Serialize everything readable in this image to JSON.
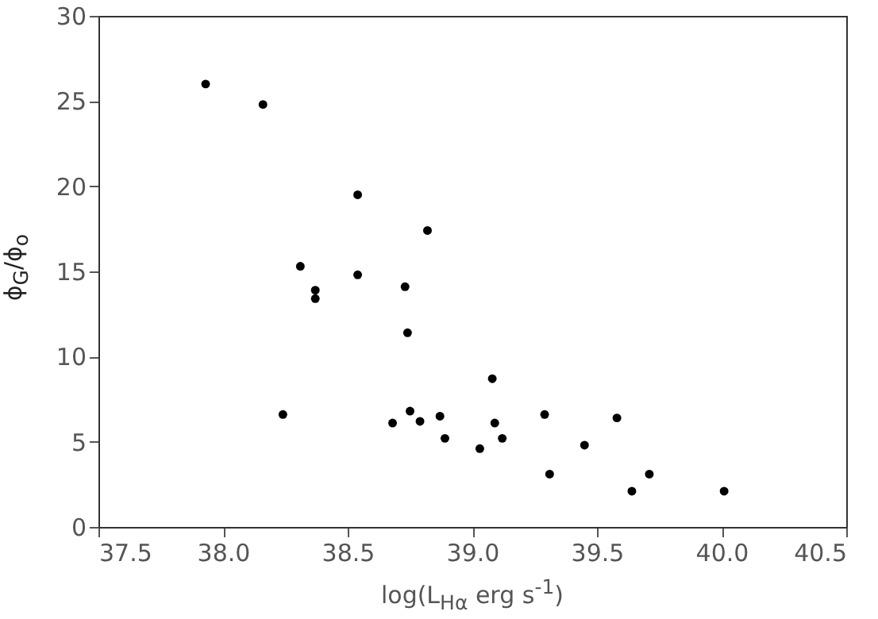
{
  "chart_data": {
    "type": "scatter",
    "xlabel": "log(L$_{Hα}$ erg s$^{-1}$)",
    "ylabel": "ϕ$_{G}$/ϕ$_{o}$",
    "x": [
      37.93,
      38.16,
      38.54,
      38.82,
      38.31,
      38.54,
      38.37,
      38.37,
      38.73,
      38.74,
      38.24,
      38.68,
      38.75,
      38.79,
      38.87,
      38.89,
      39.03,
      39.08,
      39.09,
      39.12,
      39.29,
      39.31,
      39.45,
      39.58,
      39.64,
      39.71,
      40.01
    ],
    "series": [
      {
        "color": "#000000",
        "values": [
          26.0,
          24.8,
          19.5,
          17.4,
          15.3,
          14.8,
          13.9,
          13.4,
          14.1,
          11.4,
          6.6,
          6.1,
          6.8,
          6.2,
          6.5,
          5.2,
          4.6,
          8.7,
          6.1,
          5.2,
          6.6,
          3.1,
          4.8,
          6.4,
          2.1,
          3.1,
          2.1
        ]
      }
    ],
    "xlim": [
      37.5,
      40.5
    ],
    "xticks": [
      {
        "value": 37.5,
        "label": "37.5"
      },
      {
        "value": 38,
        "label": "38.0"
      },
      {
        "value": 38.5,
        "label": "38.5"
      },
      {
        "value": 39,
        "label": "39.0"
      },
      {
        "value": 39.5,
        "label": "39.5"
      },
      {
        "value": 40,
        "label": "40.0"
      },
      {
        "value": 40.5,
        "label": "40.5"
      }
    ],
    "ylim": [
      0,
      30
    ],
    "yticks": [
      0,
      5,
      10,
      15,
      20,
      25,
      30
    ],
    "marker": "circle",
    "grid": false
  }
}
